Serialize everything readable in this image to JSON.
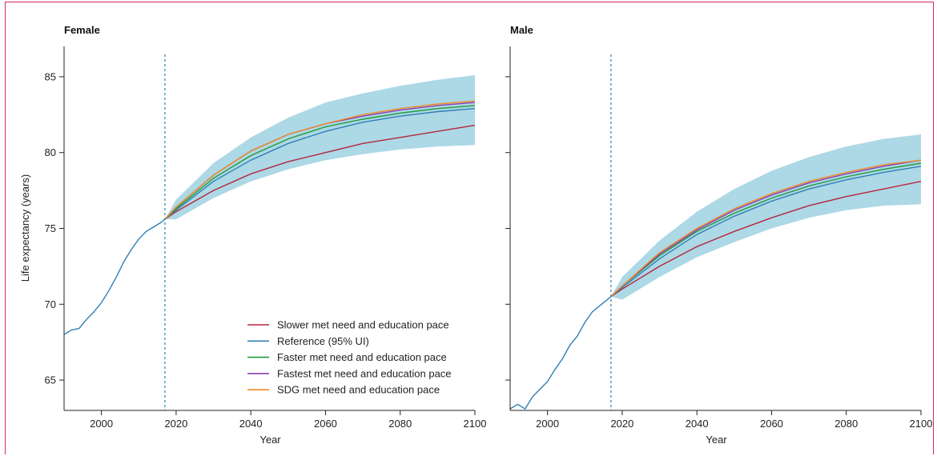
{
  "chart_data": {
    "type": "area",
    "ylabel": "Life expectancy (years)",
    "xlabel": "Year",
    "xlim": [
      1990,
      2100
    ],
    "ylim": [
      63,
      87
    ],
    "x_ticks": [
      "2000",
      "2020",
      "2040",
      "2060",
      "2080",
      "2100"
    ],
    "y_ticks": [
      "65",
      "70",
      "75",
      "80",
      "85"
    ],
    "forecast_start_year": 2017,
    "legend_location": "lower-right (Female panel)",
    "colors": {
      "slower": "#b5263c",
      "reference": "#2f7fb5",
      "faster": "#1e9a3a",
      "fastest": "#8a3fb3",
      "sdg": "#f08a24",
      "ui_band": "#add8e6",
      "vline": "#2f7fb5"
    },
    "legend": [
      {
        "key": "slower",
        "label": "Slower met need and education pace"
      },
      {
        "key": "reference",
        "label": "Reference (95% UI)"
      },
      {
        "key": "faster",
        "label": "Faster met need and education pace"
      },
      {
        "key": "fastest",
        "label": "Fastest met need and education pace"
      },
      {
        "key": "sdg",
        "label": "SDG met need and education pace"
      }
    ],
    "panels": [
      {
        "title": "Female",
        "history": {
          "x": [
            1990,
            1992,
            1994,
            1996,
            1998,
            2000,
            2002,
            2004,
            2006,
            2008,
            2010,
            2012,
            2014,
            2016,
            2017
          ],
          "y": [
            68.0,
            68.3,
            68.4,
            69.0,
            69.5,
            70.1,
            70.9,
            71.8,
            72.8,
            73.6,
            74.3,
            74.8,
            75.1,
            75.4,
            75.6
          ]
        },
        "forecast_x": [
          2017,
          2020,
          2030,
          2040,
          2050,
          2060,
          2070,
          2080,
          2090,
          2100
        ],
        "series": [
          {
            "key": "slower",
            "values": [
              75.6,
              76.1,
              77.5,
              78.6,
              79.4,
              80.0,
              80.6,
              81.0,
              81.4,
              81.8
            ]
          },
          {
            "key": "reference",
            "values": [
              75.6,
              76.2,
              78.1,
              79.5,
              80.6,
              81.4,
              82.0,
              82.4,
              82.7,
              82.9
            ]
          },
          {
            "key": "faster",
            "values": [
              75.6,
              76.3,
              78.3,
              79.8,
              80.9,
              81.7,
              82.2,
              82.6,
              82.9,
              83.1
            ]
          },
          {
            "key": "fastest",
            "values": [
              75.6,
              76.4,
              78.5,
              80.1,
              81.2,
              81.9,
              82.4,
              82.8,
              83.1,
              83.3
            ]
          },
          {
            "key": "sdg",
            "values": [
              75.6,
              76.4,
              78.5,
              80.1,
              81.2,
              81.9,
              82.5,
              82.9,
              83.2,
              83.4
            ]
          }
        ],
        "ui_band": {
          "lower": [
            75.6,
            75.6,
            77.0,
            78.1,
            78.9,
            79.5,
            79.9,
            80.2,
            80.4,
            80.5
          ],
          "upper": [
            75.6,
            76.9,
            79.3,
            81.0,
            82.3,
            83.3,
            83.9,
            84.4,
            84.8,
            85.1
          ]
        }
      },
      {
        "title": "Male",
        "history": {
          "x": [
            1990,
            1992,
            1994,
            1996,
            1998,
            2000,
            2002,
            2004,
            2006,
            2008,
            2010,
            2012,
            2014,
            2016,
            2017
          ],
          "y": [
            63.1,
            63.4,
            63.1,
            63.9,
            64.4,
            64.9,
            65.7,
            66.4,
            67.3,
            67.9,
            68.8,
            69.5,
            69.9,
            70.3,
            70.5
          ]
        },
        "forecast_x": [
          2017,
          2020,
          2030,
          2040,
          2050,
          2060,
          2070,
          2080,
          2090,
          2100
        ],
        "series": [
          {
            "key": "slower",
            "values": [
              70.5,
              71.0,
              72.5,
              73.8,
              74.8,
              75.7,
              76.5,
              77.1,
              77.6,
              78.1
            ]
          },
          {
            "key": "reference",
            "values": [
              70.5,
              71.1,
              73.0,
              74.6,
              75.8,
              76.8,
              77.6,
              78.2,
              78.7,
              79.1
            ]
          },
          {
            "key": "faster",
            "values": [
              70.5,
              71.2,
              73.2,
              74.8,
              76.0,
              77.0,
              77.8,
              78.4,
              78.9,
              79.3
            ]
          },
          {
            "key": "fastest",
            "values": [
              70.5,
              71.2,
              73.3,
              74.9,
              76.2,
              77.2,
              78.0,
              78.6,
              79.1,
              79.5
            ]
          },
          {
            "key": "sdg",
            "values": [
              70.5,
              71.2,
              73.4,
              75.0,
              76.3,
              77.3,
              78.1,
              78.7,
              79.2,
              79.5
            ]
          }
        ],
        "ui_band": {
          "lower": [
            70.5,
            70.3,
            71.8,
            73.1,
            74.1,
            75.0,
            75.7,
            76.2,
            76.5,
            76.6
          ],
          "upper": [
            70.5,
            71.8,
            74.2,
            76.1,
            77.6,
            78.8,
            79.7,
            80.4,
            80.9,
            81.2
          ]
        }
      }
    ]
  }
}
